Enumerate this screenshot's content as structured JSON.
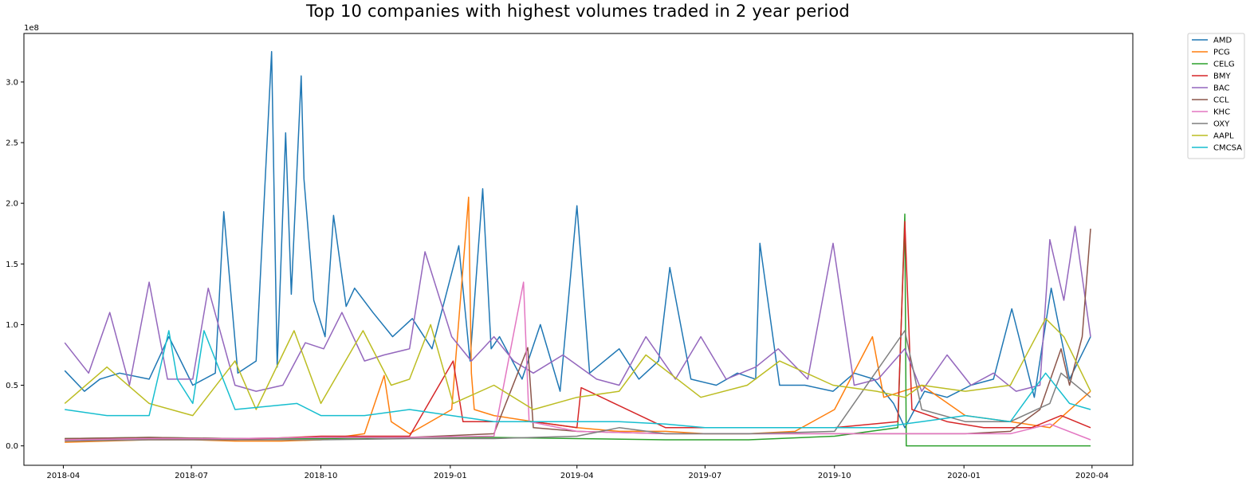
{
  "chart_data": {
    "type": "line",
    "title": "Top 10 companies with highest volumes traded in 2 year period",
    "xlabel": "",
    "ylabel": "",
    "y_scale_label": "1e8",
    "xlim": [
      "2018-03-04",
      "2020-04-30"
    ],
    "ylim": [
      -1.6,
      34.0
    ],
    "y_unit_multiplier": 100000000,
    "x_ticks": [
      "2018-04",
      "2018-07",
      "2018-10",
      "2019-01",
      "2019-04",
      "2019-07",
      "2019-10",
      "2020-01",
      "2020-04"
    ],
    "y_ticks": [
      "0.0",
      "0.5",
      "1.0",
      "1.5",
      "2.0",
      "2.5",
      "3.0"
    ],
    "grid": false,
    "legend_position": "outside top-right",
    "colors": {
      "AMD": "#1f77b4",
      "PCG": "#ff7f0e",
      "CELG": "#2ca02c",
      "BMY": "#d62728",
      "BAC": "#9467bd",
      "CCL": "#8c564b",
      "KHC": "#e377c2",
      "OXY": "#7f7f7f",
      "AAPL": "#bcbd22",
      "CMCSA": "#17becf"
    },
    "series": [
      {
        "name": "AMD",
        "x": [
          "2018-04-02",
          "2018-04-16",
          "2018-04-27",
          "2018-05-11",
          "2018-06-01",
          "2018-06-15",
          "2018-07-02",
          "2018-07-18",
          "2018-07-24",
          "2018-08-03",
          "2018-08-16",
          "2018-08-27",
          "2018-08-31",
          "2018-09-06",
          "2018-09-10",
          "2018-09-17",
          "2018-09-19",
          "2018-09-26",
          "2018-10-04",
          "2018-10-10",
          "2018-10-19",
          "2018-10-25",
          "2018-11-07",
          "2018-11-21",
          "2018-12-05",
          "2018-12-19",
          "2019-01-07",
          "2019-01-15",
          "2019-01-24",
          "2019-01-30",
          "2019-02-05",
          "2019-02-21",
          "2019-03-06",
          "2019-03-20",
          "2019-04-01",
          "2019-04-10",
          "2019-05-01",
          "2019-05-15",
          "2019-05-29",
          "2019-06-06",
          "2019-06-21",
          "2019-07-09",
          "2019-07-24",
          "2019-08-06",
          "2019-08-09",
          "2019-08-23",
          "2019-09-10",
          "2019-09-30",
          "2019-10-15",
          "2019-10-29",
          "2019-11-12",
          "2019-11-20",
          "2019-12-04",
          "2019-12-20",
          "2020-01-06",
          "2020-01-22",
          "2020-02-04",
          "2020-02-20",
          "2020-03-03",
          "2020-03-16",
          "2020-03-31"
        ],
        "values": [
          0.62,
          0.45,
          0.55,
          0.6,
          0.55,
          0.9,
          0.5,
          0.6,
          1.93,
          0.6,
          0.7,
          3.25,
          0.65,
          2.58,
          1.25,
          3.05,
          2.2,
          1.2,
          0.9,
          1.9,
          1.15,
          1.3,
          1.1,
          0.9,
          1.05,
          0.8,
          1.65,
          0.7,
          2.12,
          0.8,
          0.9,
          0.55,
          1.0,
          0.45,
          1.98,
          0.6,
          0.8,
          0.55,
          0.7,
          1.47,
          0.55,
          0.5,
          0.6,
          0.55,
          1.67,
          0.5,
          0.5,
          0.45,
          0.6,
          0.55,
          0.35,
          0.15,
          0.45,
          0.4,
          0.5,
          0.55,
          1.13,
          0.4,
          1.3,
          0.55,
          0.9
        ]
      },
      {
        "name": "PCG",
        "x": [
          "2018-04-02",
          "2018-05-01",
          "2018-06-01",
          "2018-07-02",
          "2018-08-01",
          "2018-09-03",
          "2018-10-01",
          "2018-11-01",
          "2018-11-15",
          "2018-11-20",
          "2018-12-03",
          "2019-01-02",
          "2019-01-14",
          "2019-01-16",
          "2019-01-18",
          "2019-02-01",
          "2019-03-01",
          "2019-04-01",
          "2019-05-01",
          "2019-06-03",
          "2019-07-01",
          "2019-08-01",
          "2019-09-03",
          "2019-10-01",
          "2019-10-28",
          "2019-11-05",
          "2019-12-02",
          "2020-01-02",
          "2020-02-03",
          "2020-03-02",
          "2020-03-31"
        ],
        "values": [
          0.03,
          0.04,
          0.05,
          0.05,
          0.04,
          0.04,
          0.05,
          0.1,
          0.58,
          0.2,
          0.1,
          0.3,
          2.05,
          0.6,
          0.3,
          0.25,
          0.2,
          0.15,
          0.12,
          0.12,
          0.1,
          0.1,
          0.12,
          0.3,
          0.9,
          0.4,
          0.5,
          0.25,
          0.2,
          0.15,
          0.45
        ]
      },
      {
        "name": "CELG",
        "x": [
          "2018-04-02",
          "2018-06-01",
          "2018-08-01",
          "2018-10-01",
          "2018-12-03",
          "2019-02-01",
          "2019-04-01",
          "2019-06-03",
          "2019-08-01",
          "2019-10-01",
          "2019-11-15",
          "2019-11-20",
          "2019-11-21",
          "2019-12-02",
          "2020-01-02",
          "2020-03-31"
        ],
        "values": [
          0.06,
          0.07,
          0.06,
          0.06,
          0.07,
          0.07,
          0.06,
          0.05,
          0.05,
          0.08,
          0.15,
          1.91,
          0.0,
          0.0,
          0.0,
          0.0
        ]
      },
      {
        "name": "BMY",
        "x": [
          "2018-04-02",
          "2018-06-01",
          "2018-08-01",
          "2018-10-01",
          "2018-12-03",
          "2019-01-03",
          "2019-01-10",
          "2019-02-01",
          "2019-03-01",
          "2019-04-01",
          "2019-04-04",
          "2019-06-03",
          "2019-08-01",
          "2019-10-01",
          "2019-11-15",
          "2019-11-20",
          "2019-11-25",
          "2019-12-20",
          "2020-01-15",
          "2020-02-18",
          "2020-03-10",
          "2020-03-31"
        ],
        "values": [
          0.05,
          0.06,
          0.05,
          0.08,
          0.08,
          0.7,
          0.2,
          0.2,
          0.2,
          0.15,
          0.48,
          0.15,
          0.15,
          0.15,
          0.2,
          1.85,
          0.3,
          0.2,
          0.15,
          0.15,
          0.25,
          0.15
        ]
      },
      {
        "name": "BAC",
        "x": [
          "2018-04-02",
          "2018-04-19",
          "2018-05-04",
          "2018-05-18",
          "2018-06-01",
          "2018-06-14",
          "2018-07-02",
          "2018-07-13",
          "2018-08-01",
          "2018-08-16",
          "2018-09-04",
          "2018-09-20",
          "2018-10-03",
          "2018-10-16",
          "2018-11-01",
          "2018-11-15",
          "2018-12-03",
          "2018-12-14",
          "2019-01-02",
          "2019-01-16",
          "2019-02-01",
          "2019-02-15",
          "2019-03-01",
          "2019-03-22",
          "2019-04-15",
          "2019-05-01",
          "2019-05-20",
          "2019-06-10",
          "2019-06-28",
          "2019-07-16",
          "2019-08-06",
          "2019-08-22",
          "2019-09-12",
          "2019-09-30",
          "2019-10-15",
          "2019-11-01",
          "2019-11-20",
          "2019-12-02",
          "2019-12-20",
          "2020-01-06",
          "2020-01-22",
          "2020-02-07",
          "2020-02-24",
          "2020-03-02",
          "2020-03-12",
          "2020-03-20",
          "2020-03-31"
        ],
        "values": [
          0.85,
          0.6,
          1.1,
          0.5,
          1.35,
          0.55,
          0.55,
          1.3,
          0.5,
          0.45,
          0.5,
          0.85,
          0.8,
          1.1,
          0.7,
          0.75,
          0.8,
          1.6,
          0.9,
          0.7,
          0.9,
          0.7,
          0.6,
          0.75,
          0.55,
          0.5,
          0.9,
          0.55,
          0.9,
          0.55,
          0.65,
          0.8,
          0.55,
          1.67,
          0.5,
          0.55,
          0.8,
          0.45,
          0.75,
          0.5,
          0.6,
          0.45,
          0.5,
          1.7,
          1.2,
          1.81,
          0.9
        ]
      },
      {
        "name": "CCL",
        "x": [
          "2018-04-02",
          "2018-06-01",
          "2018-08-01",
          "2018-10-01",
          "2018-12-03",
          "2019-02-01",
          "2019-02-25",
          "2019-03-01",
          "2019-04-01",
          "2019-06-03",
          "2019-08-01",
          "2019-10-01",
          "2019-12-02",
          "2020-01-02",
          "2020-02-03",
          "2020-02-24",
          "2020-03-10",
          "2020-03-16",
          "2020-03-25",
          "2020-03-31"
        ],
        "values": [
          0.06,
          0.07,
          0.06,
          0.07,
          0.07,
          0.1,
          0.81,
          0.15,
          0.12,
          0.1,
          0.1,
          0.1,
          0.1,
          0.1,
          0.12,
          0.3,
          0.8,
          0.5,
          0.9,
          1.79
        ]
      },
      {
        "name": "KHC",
        "x": [
          "2018-04-02",
          "2018-06-01",
          "2018-08-01",
          "2018-10-01",
          "2018-12-03",
          "2019-02-01",
          "2019-02-22",
          "2019-02-26",
          "2019-04-01",
          "2019-06-03",
          "2019-08-01",
          "2019-10-01",
          "2019-12-02",
          "2020-01-02",
          "2020-02-03",
          "2020-03-02",
          "2020-03-31"
        ],
        "values": [
          0.05,
          0.06,
          0.06,
          0.07,
          0.07,
          0.08,
          1.35,
          0.2,
          0.12,
          0.1,
          0.1,
          0.1,
          0.1,
          0.1,
          0.1,
          0.18,
          0.05
        ]
      },
      {
        "name": "OXY",
        "x": [
          "2018-04-02",
          "2018-06-01",
          "2018-08-01",
          "2018-10-01",
          "2018-12-03",
          "2019-02-01",
          "2019-04-01",
          "2019-05-01",
          "2019-06-03",
          "2019-08-01",
          "2019-10-01",
          "2019-11-20",
          "2019-12-02",
          "2020-01-02",
          "2020-02-03",
          "2020-03-02",
          "2020-03-10",
          "2020-03-31"
        ],
        "values": [
          0.04,
          0.05,
          0.05,
          0.05,
          0.06,
          0.06,
          0.08,
          0.15,
          0.1,
          0.1,
          0.12,
          0.95,
          0.3,
          0.2,
          0.2,
          0.35,
          0.6,
          0.4
        ]
      },
      {
        "name": "AAPL",
        "x": [
          "2018-04-02",
          "2018-05-02",
          "2018-06-01",
          "2018-07-02",
          "2018-08-01",
          "2018-08-16",
          "2018-09-12",
          "2018-10-01",
          "2018-10-31",
          "2018-11-20",
          "2018-12-03",
          "2018-12-18",
          "2019-01-03",
          "2019-02-01",
          "2019-03-01",
          "2019-04-01",
          "2019-05-01",
          "2019-05-20",
          "2019-06-28",
          "2019-07-31",
          "2019-08-23",
          "2019-09-30",
          "2019-10-31",
          "2019-11-20",
          "2019-12-02",
          "2020-01-02",
          "2020-02-03",
          "2020-02-28",
          "2020-03-12",
          "2020-03-31"
        ],
        "values": [
          0.35,
          0.65,
          0.35,
          0.25,
          0.7,
          0.3,
          0.95,
          0.35,
          0.95,
          0.5,
          0.55,
          1.0,
          0.35,
          0.5,
          0.3,
          0.4,
          0.45,
          0.75,
          0.4,
          0.5,
          0.7,
          0.5,
          0.45,
          0.4,
          0.5,
          0.45,
          0.5,
          1.05,
          0.9,
          0.45
        ]
      },
      {
        "name": "CMCSA",
        "x": [
          "2018-04-02",
          "2018-05-02",
          "2018-06-01",
          "2018-06-15",
          "2018-06-21",
          "2018-07-02",
          "2018-07-10",
          "2018-08-01",
          "2018-09-14",
          "2018-10-01",
          "2018-11-01",
          "2018-12-03",
          "2019-01-02",
          "2019-02-01",
          "2019-03-01",
          "2019-04-01",
          "2019-05-01",
          "2019-06-03",
          "2019-07-01",
          "2019-08-01",
          "2019-09-03",
          "2019-10-01",
          "2019-11-01",
          "2019-12-02",
          "2020-01-02",
          "2020-02-03",
          "2020-02-28",
          "2020-03-16",
          "2020-03-31"
        ],
        "values": [
          0.3,
          0.25,
          0.25,
          0.95,
          0.55,
          0.35,
          0.95,
          0.3,
          0.35,
          0.25,
          0.25,
          0.3,
          0.25,
          0.2,
          0.2,
          0.2,
          0.2,
          0.18,
          0.15,
          0.15,
          0.15,
          0.15,
          0.15,
          0.2,
          0.25,
          0.2,
          0.6,
          0.35,
          0.3
        ]
      }
    ]
  }
}
